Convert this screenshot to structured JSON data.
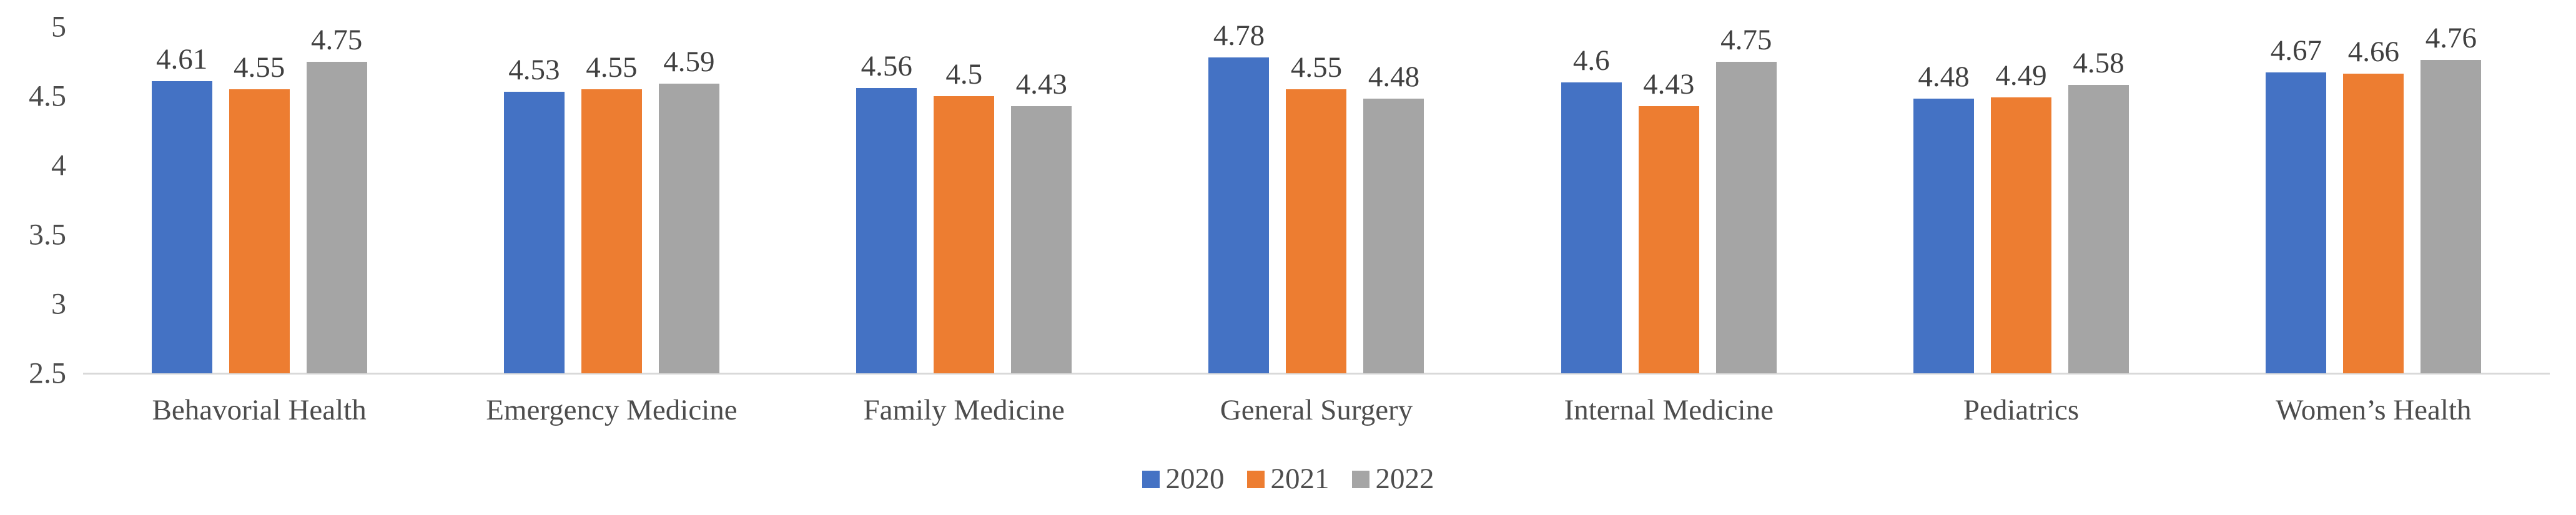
{
  "chart_data": {
    "type": "bar",
    "title": "",
    "xlabel": "",
    "ylabel": "",
    "categories": [
      "Behavorial Health",
      "Emergency Medicine",
      "Family Medicine",
      "General Surgery",
      "Internal Medicine",
      "Pediatrics",
      "Women’s Health"
    ],
    "series": [
      {
        "name": "2020",
        "color": "#4472C4",
        "values": [
          4.61,
          4.53,
          4.56,
          4.78,
          4.6,
          4.48,
          4.67
        ]
      },
      {
        "name": "2021",
        "color": "#ED7D31",
        "values": [
          4.55,
          4.55,
          4.5,
          4.55,
          4.43,
          4.49,
          4.66
        ]
      },
      {
        "name": "2022",
        "color": "#A5A5A5",
        "values": [
          4.75,
          4.59,
          4.43,
          4.48,
          4.75,
          4.58,
          4.76
        ]
      }
    ],
    "data_labels": true,
    "ylim": [
      2.5,
      5
    ],
    "yticks": [
      5,
      4.5,
      4,
      3.5,
      3,
      2.5
    ],
    "grid": false,
    "legend_position": "bottom",
    "colors": {
      "axis_line": "#d9d9d9",
      "tick_text": "#4d4d4d",
      "data_label_text": "#404040",
      "background": "#ffffff"
    }
  }
}
